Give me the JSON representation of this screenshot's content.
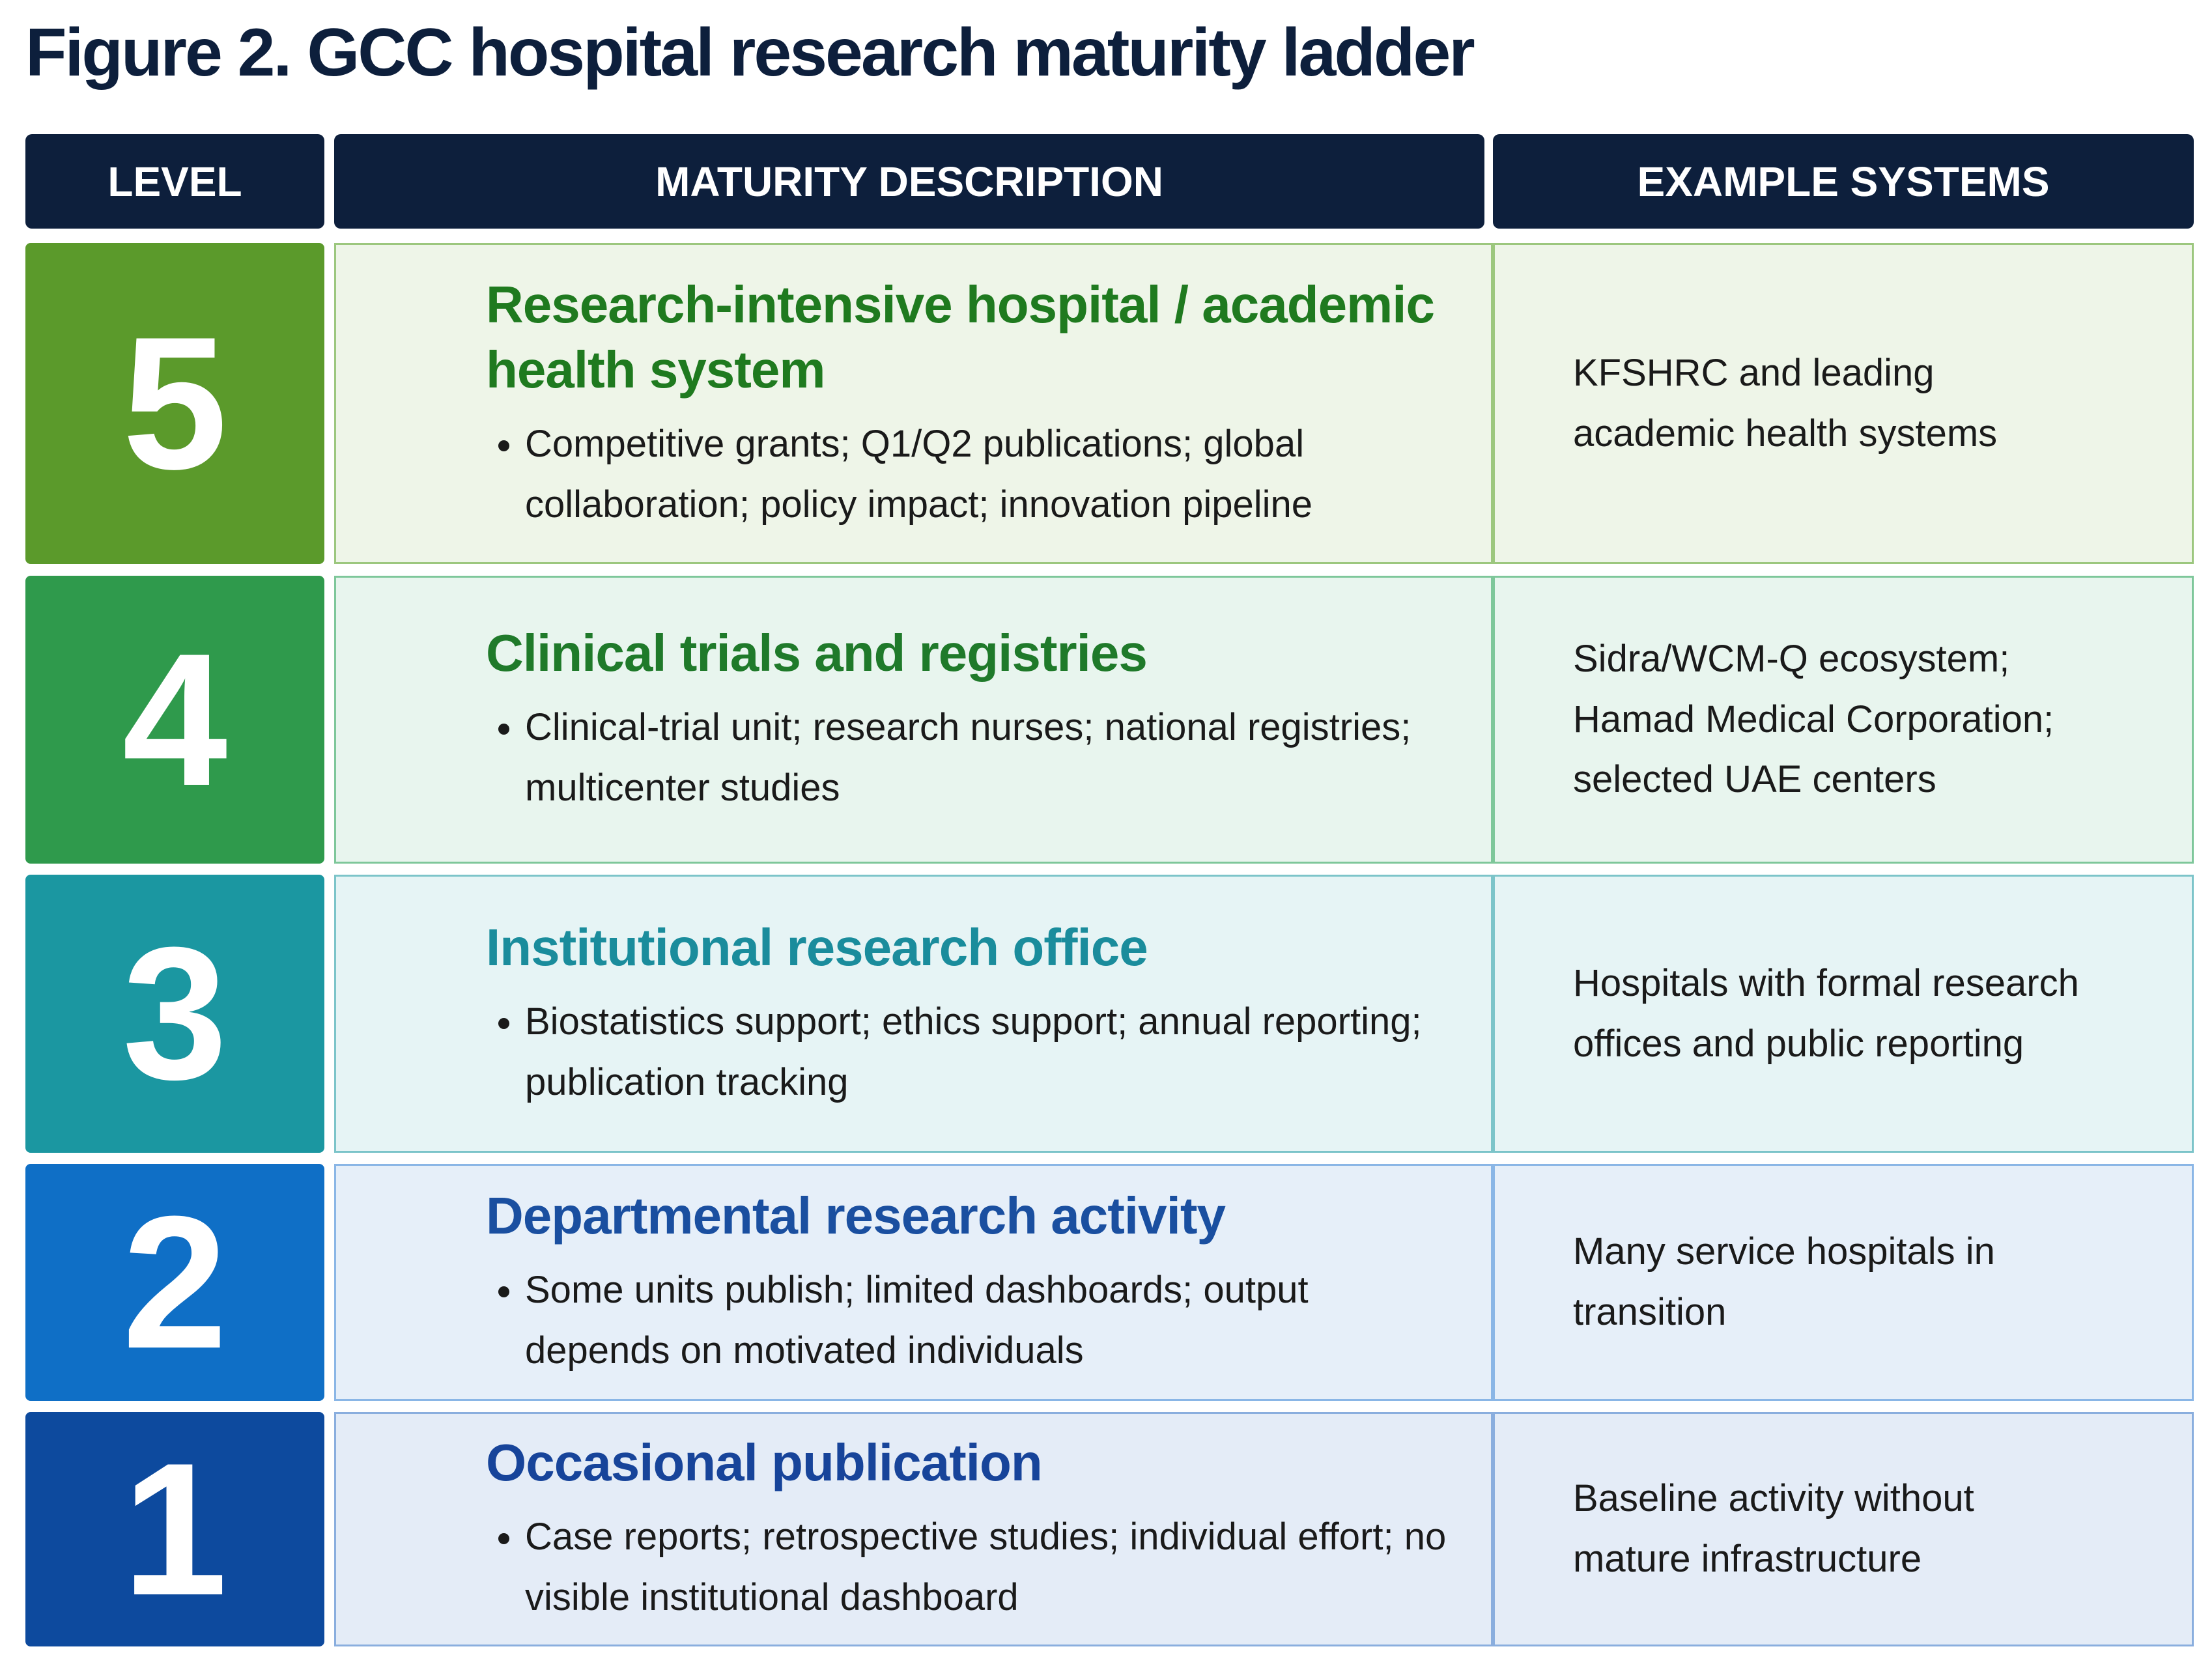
{
  "title": "Figure 2. GCC hospital research maturity ladder",
  "table": {
    "headers": [
      "LEVEL",
      "MATURITY DESCRIPTION",
      "EXAMPLE SYSTEMS"
    ],
    "rows": [
      {
        "level": "5",
        "heading": "Research-intensive hospital / academic health system",
        "bullet": "Competitive grants; Q1/Q2 publications; global collaboration; policy impact; innovation pipeline",
        "examples": "KFSHRC and leading academic health systems"
      },
      {
        "level": "4",
        "heading": "Clinical trials and registries",
        "bullet": "Clinical-trial unit; research nurses; national registries; multicenter studies",
        "examples": "Sidra/WCM-Q ecosystem; Hamad Medical Corporation; selected UAE centers"
      },
      {
        "level": "3",
        "heading": "Institutional research office",
        "bullet": "Biostatistics support; ethics support; annual reporting; publication tracking",
        "examples": "Hospitals with formal research offices and public reporting"
      },
      {
        "level": "2",
        "heading": "Departmental research activity",
        "bullet": "Some units publish; limited dashboards; output depends on motivated individuals",
        "examples": "Many service hospitals in transition"
      },
      {
        "level": "1",
        "heading": "Occasional publication",
        "bullet": "Case reports; retrospective studies; individual effort; no visible institutional dashboard",
        "examples": "Baseline activity without mature infrastructure"
      }
    ]
  }
}
